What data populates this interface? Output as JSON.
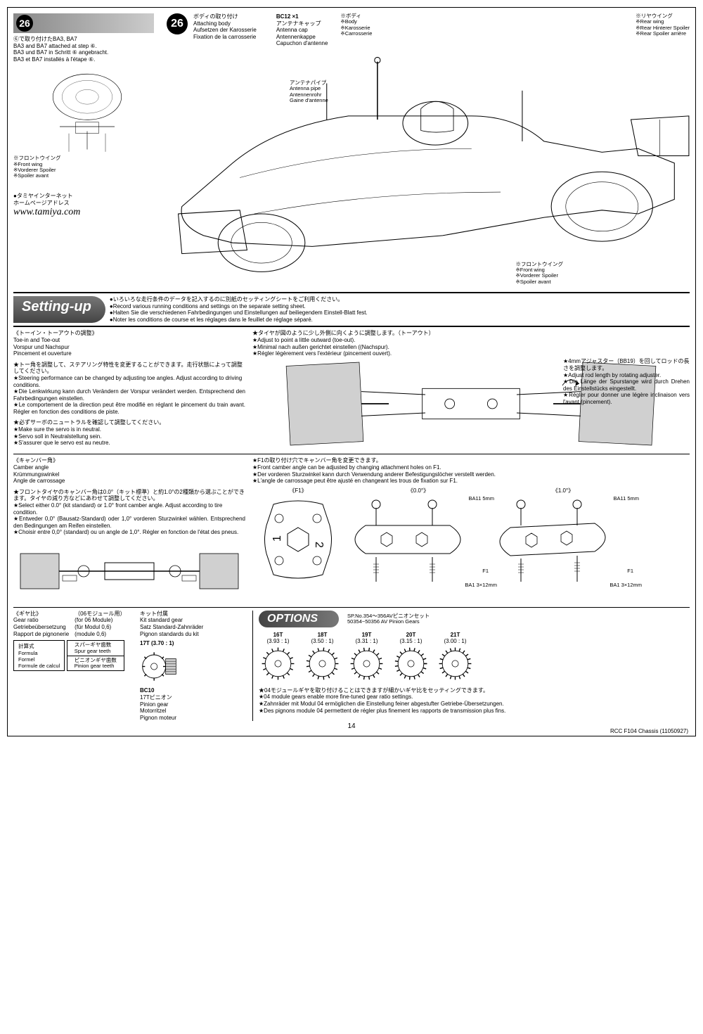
{
  "step26": {
    "number": "26",
    "title_jp": "ボディの取り付け",
    "title_en": "Attaching body",
    "title_de": "Aufsetzen der Karosserie",
    "title_fr": "Fixation de la carrosserie",
    "note_jp": "⑥で取り付けたBA3, BA7",
    "note_en": "BA3 and BA7 attached at step ⑥.",
    "note_de": "BA3 und BA7 in Schritt ⑥ angebracht.",
    "note_fr": "BA3 et BA7 installés à l'étape ⑥.",
    "bc12": "BC12 ×1",
    "antenna_cap": {
      "jp": "アンテナキャップ",
      "en": "Antenna cap",
      "de": "Antennenkappe",
      "fr": "Capuchon d'antenne"
    },
    "antenna_pipe": {
      "jp": "アンテナパイプ",
      "en": "Antenna pipe",
      "de": "Antennenrohr",
      "fr": "Gaine d'antenne"
    },
    "body_label": {
      "jp": "※ボディ",
      "en": "※Body",
      "de": "※Karosserie",
      "fr": "※Carrosserie"
    },
    "rear_wing": {
      "jp": "※リヤウイング",
      "en": "※Rear wing",
      "de": "※Rear Hinterer Spoiler",
      "fr": "※Rear Spoiler arrière"
    },
    "front_wing": {
      "jp": "※フロントウイング",
      "en": "※Front wing",
      "de": "※Vorderer Spoiler",
      "fr": "※Spoiler avant"
    },
    "tamiya_jp": "●タミヤインターネット",
    "tamiya_jp2": "ホームページアドレス",
    "url": "www.tamiya.com"
  },
  "settingup": {
    "title": "Setting-up",
    "intro_jp": "●いろいろな走行条件のデータを記入するのに別紙のセッティングシートをご利用ください。",
    "intro_en": "●Record various running conditions and settings on the separate setting sheet.",
    "intro_de": "●Halten Sie die verschiedenen Fahrbedingungen und Einstellungen auf beiliegendem Einstell-Blatt fest.",
    "intro_fr": "●Noter les conditions de course et les réglages dans le feuillet de réglage séparé."
  },
  "toe": {
    "heading_jp": "《トーイン・トーアウトの調整》",
    "heading_en": "Toe-in and Toe-out",
    "heading_de": "Vorspur und Nachspur",
    "heading_fr": "Pincement et ouverture",
    "p1_jp": "★トー角を調整して、ステアリング特性を変更することができます。走行状態によって調整してください。",
    "p1_en": "★Steering performance can be changed by adjusting toe angles. Adjust according to driving conditions.",
    "p1_de": "★Die Lenkwirkung kann durch Verändern der Vorspur verändert werden. Entsprechend den Fahrbedingungen einstellen.",
    "p1_fr": "★Le comportement de la direction peut être modifié en réglant le pincement du train avant. Régler en fonction des conditions de piste.",
    "p2_jp": "★必ずサーボのニュートラルを確認して調整してください。",
    "p2_en": "★Make sure the servo is in neutral.",
    "p2_de": "★Servo soll in Neutralstellung sein.",
    "p2_fr": "★S'assurer que le servo est au neutre.",
    "r1_jp": "★タイヤが図のように少し外側に向くように調整します。（トーアウト）",
    "r1_en": "★Adjust to point a little outward (toe-out).",
    "r1_de": "★Minimal nach außen gerichtet einstellen ((Nachspur).",
    "r1_fr": "★Régler légèrement vers l'extérieur (pincement ouvert).",
    "r2_jp": "★4mmアジャスター（BB19）を回してロッドの長さを調整します。",
    "r2_en": "★Adjust rod length by rotating adjuster.",
    "r2_de": "★Die Länge der Spurstange wird durch Drehen des Einstellstücks eingestellt.",
    "r2_fr": "★Régler pour donner une légère inclinaison vers l'avant (pincement)."
  },
  "camber": {
    "heading_jp": "《キャンバー角》",
    "heading_en": "Camber angle",
    "heading_de": "Krümmungswinkel",
    "heading_fr": "Angle de carrossage",
    "p1_jp": "★フロントタイヤのキャンバー角は0.0°（キット標準）と約1.0°の2種類から選ぶことができます。タイヤの減り方などにあわせて調整してください。",
    "p1_en": "★Select either 0.0° (kit standard) or 1.0° front camber angle. Adjust according to tire condition.",
    "p1_de": "★Entweder 0,0° (Bausatz-Standard) oder 1,0° vorderen Sturzwinkel wählen. Entsprechend den Bedingungen am Reifen einstellen.",
    "p1_fr": "★Choisir entre 0,0° (standard) ou un angle de 1,0°. Régler en fonction de l'état des pneus.",
    "r1_jp": "★F1の取り付け穴でキャンバー角を変更できます。",
    "r1_en": "★Front camber angle can be adjusted by changing attachment holes on F1.",
    "r1_de": "★Der vorderen Sturzwinkel kann durch Verwendung anderer Befestigungslöcher verstellt werden.",
    "r1_fr": "★L'angle de carrossage peut être ajusté en changeant les trous de fixation sur F1.",
    "angle_00": "《0.0°》",
    "angle_10": "《1.0°》",
    "f1_label": "《F1》",
    "ba11": "BA11 5mm",
    "ba1": "BA1 3×12mm",
    "f1": "F1"
  },
  "gear": {
    "heading_jp": "《ギヤ比》",
    "heading_en": "Gear ratio",
    "heading_de": "Getriebeübersetzung",
    "heading_fr": "Rapport de pignonerie",
    "module_jp": "（06モジュール用）",
    "module_en": "(for 06 Module)",
    "module_de": "(für Modul 0,6)",
    "module_fr": "(module 0,6)",
    "formula_jp": "計算式",
    "formula_en": "Formula",
    "formula_de": "Formel",
    "formula_fr": "Formule de calcul",
    "spur_jp": "スパーギヤ歯数",
    "spur_en": "Spur gear teeth",
    "pinion_jp": "ピニオンギヤ歯数",
    "pinion_en": "Pinion gear teeth",
    "kit_jp": "キット付属",
    "kit_en": "Kit standard gear",
    "kit_de": "Satz Standard-Zahnräder",
    "kit_fr": "Pignon standards du kit",
    "bc10": "BC10",
    "seventeen_t": "17T (3.70 : 1)",
    "pinion_label_jp": "17Tピニオン",
    "pinion_label_en": "Pinion gear",
    "pinion_label_de": "Motorritzel",
    "pinion_label_fr": "Pignon moteur"
  },
  "options": {
    "title": "OPTIONS",
    "sp_jp": "SP.No.354～356AVピニオンセット",
    "sp_en": "50354~50356 AV Pinion Gears",
    "gears": [
      {
        "t": "16T",
        "r": "(3.93 : 1)"
      },
      {
        "t": "18T",
        "r": "(3.50 : 1)"
      },
      {
        "t": "19T",
        "r": "(3.31 : 1)"
      },
      {
        "t": "20T",
        "r": "(3.15 : 1)"
      },
      {
        "t": "21T",
        "r": "(3.00 : 1)"
      }
    ],
    "note_jp": "★04モジュールギヤを取り付けることはできますが細かいギヤ比をセッティングできます。",
    "note_en": "★04 module gears enable more fine-tuned gear ratio settings.",
    "note_de": "★Zahnräder mit Modul 04 ermöglichen die Einstellung feiner abgestufter Getriebe-Übersetzungen.",
    "note_fr": "★Des pignons module 04 permettent de régler plus finement les rapports de transmission plus fins."
  },
  "footer": {
    "page": "14",
    "code": "RCC F104 Chassis (11050927)"
  }
}
